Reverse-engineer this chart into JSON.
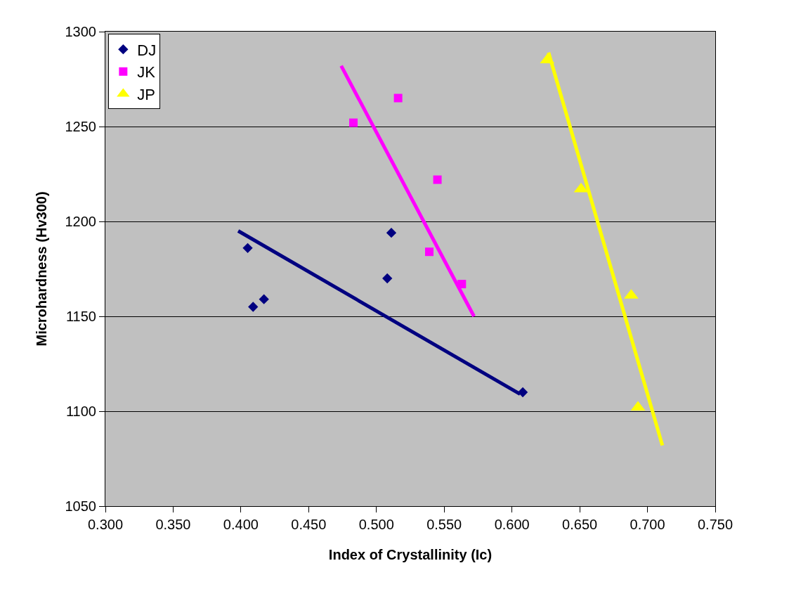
{
  "chart_data": {
    "type": "scatter",
    "xlabel": "Index of Crystallinity (Ic)",
    "ylabel": "Microhardness (Hv300)",
    "xlim": [
      0.3,
      0.75
    ],
    "xticks": [
      {
        "value": 0.3,
        "label": "0.300"
      },
      {
        "value": 0.35,
        "label": "0.350"
      },
      {
        "value": 0.4,
        "label": "0.400"
      },
      {
        "value": 0.45,
        "label": "0.450"
      },
      {
        "value": 0.5,
        "label": "0.500"
      },
      {
        "value": 0.55,
        "label": "0.550"
      },
      {
        "value": 0.6,
        "label": "0.600"
      },
      {
        "value": 0.65,
        "label": "0.650"
      },
      {
        "value": 0.7,
        "label": "0.700"
      },
      {
        "value": 0.75,
        "label": "0.750"
      }
    ],
    "ylim": [
      1050,
      1300
    ],
    "yticks": [
      1050,
      1100,
      1150,
      1200,
      1250,
      1300
    ],
    "grid": "y",
    "legend": "top left",
    "series": [
      {
        "name": "DJ",
        "color": "#000080",
        "marker": "diamond",
        "x": [
          0.405,
          0.409,
          0.417,
          0.508,
          0.511,
          0.608
        ],
        "values": [
          1186,
          1155,
          1159,
          1170,
          1194,
          1110
        ]
      },
      {
        "name": "JK",
        "color": "#ff00ff",
        "marker": "square",
        "x": [
          0.483,
          0.516,
          0.545,
          0.539,
          0.563
        ],
        "values": [
          1252,
          1265,
          1222,
          1184,
          1167
        ]
      },
      {
        "name": "JP",
        "color": "#ffff00",
        "marker": "triangle",
        "x": [
          0.626,
          0.651,
          0.688,
          0.693
        ],
        "values": [
          1285,
          1217,
          1161,
          1102
        ]
      },
      {
        "type": "line",
        "color": "#000080",
        "marker": "none",
        "x": [
          0.398,
          0.606
        ],
        "values": [
          1195,
          1109
        ]
      },
      {
        "type": "line",
        "color": "#ff00ff",
        "marker": "none",
        "x": [
          0.474,
          0.572
        ],
        "values": [
          1282,
          1150
        ]
      },
      {
        "type": "line",
        "color": "#ffff00",
        "marker": "none",
        "x": [
          0.627,
          0.711
        ],
        "values": [
          1289,
          1082
        ]
      }
    ]
  }
}
